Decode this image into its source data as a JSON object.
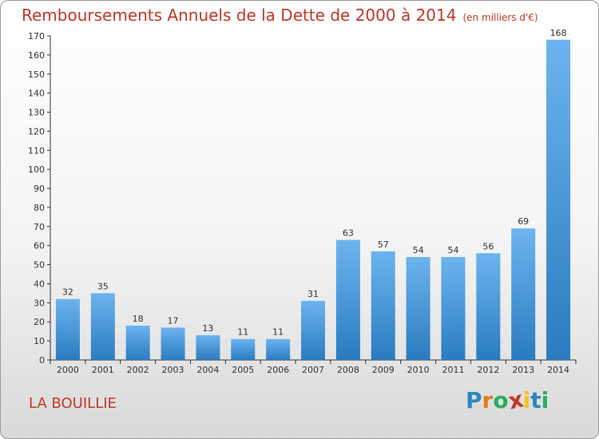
{
  "header": {
    "title": "Remboursements Annuels de la Dette de 2000 à 2014",
    "unit": "(en milliers d'€)"
  },
  "footer": {
    "city": "LA BOUILLIE",
    "logo": {
      "letters": [
        "P",
        "r",
        "o",
        "x",
        "i",
        "t",
        "i"
      ],
      "colors": [
        "#2e86c1",
        "#e67e22",
        "#27ae60",
        "#c0392b",
        "#f1c40f",
        "#2e86c1",
        "#27ae60"
      ]
    }
  },
  "colors": {
    "accent": "#c0392b",
    "bar_light": "#6cb4ef",
    "bar_dark": "#2a7bc0"
  },
  "chart_data": {
    "type": "bar",
    "title": "Remboursements Annuels de la Dette de 2000 à 2014",
    "ylabel": "(en milliers d'€)",
    "xlabel": "",
    "categories": [
      "2000",
      "2001",
      "2002",
      "2003",
      "2004",
      "2005",
      "2006",
      "2007",
      "2008",
      "2009",
      "2010",
      "2011",
      "2012",
      "2013",
      "2014"
    ],
    "values": [
      32,
      35,
      18,
      17,
      13,
      11,
      11,
      31,
      63,
      57,
      54,
      54,
      56,
      69,
      168
    ],
    "ylim": [
      0,
      170
    ],
    "yticks": [
      0,
      10,
      20,
      30,
      40,
      50,
      60,
      70,
      80,
      90,
      100,
      110,
      120,
      130,
      140,
      150,
      160,
      170
    ],
    "grid": false,
    "legend": "none"
  }
}
